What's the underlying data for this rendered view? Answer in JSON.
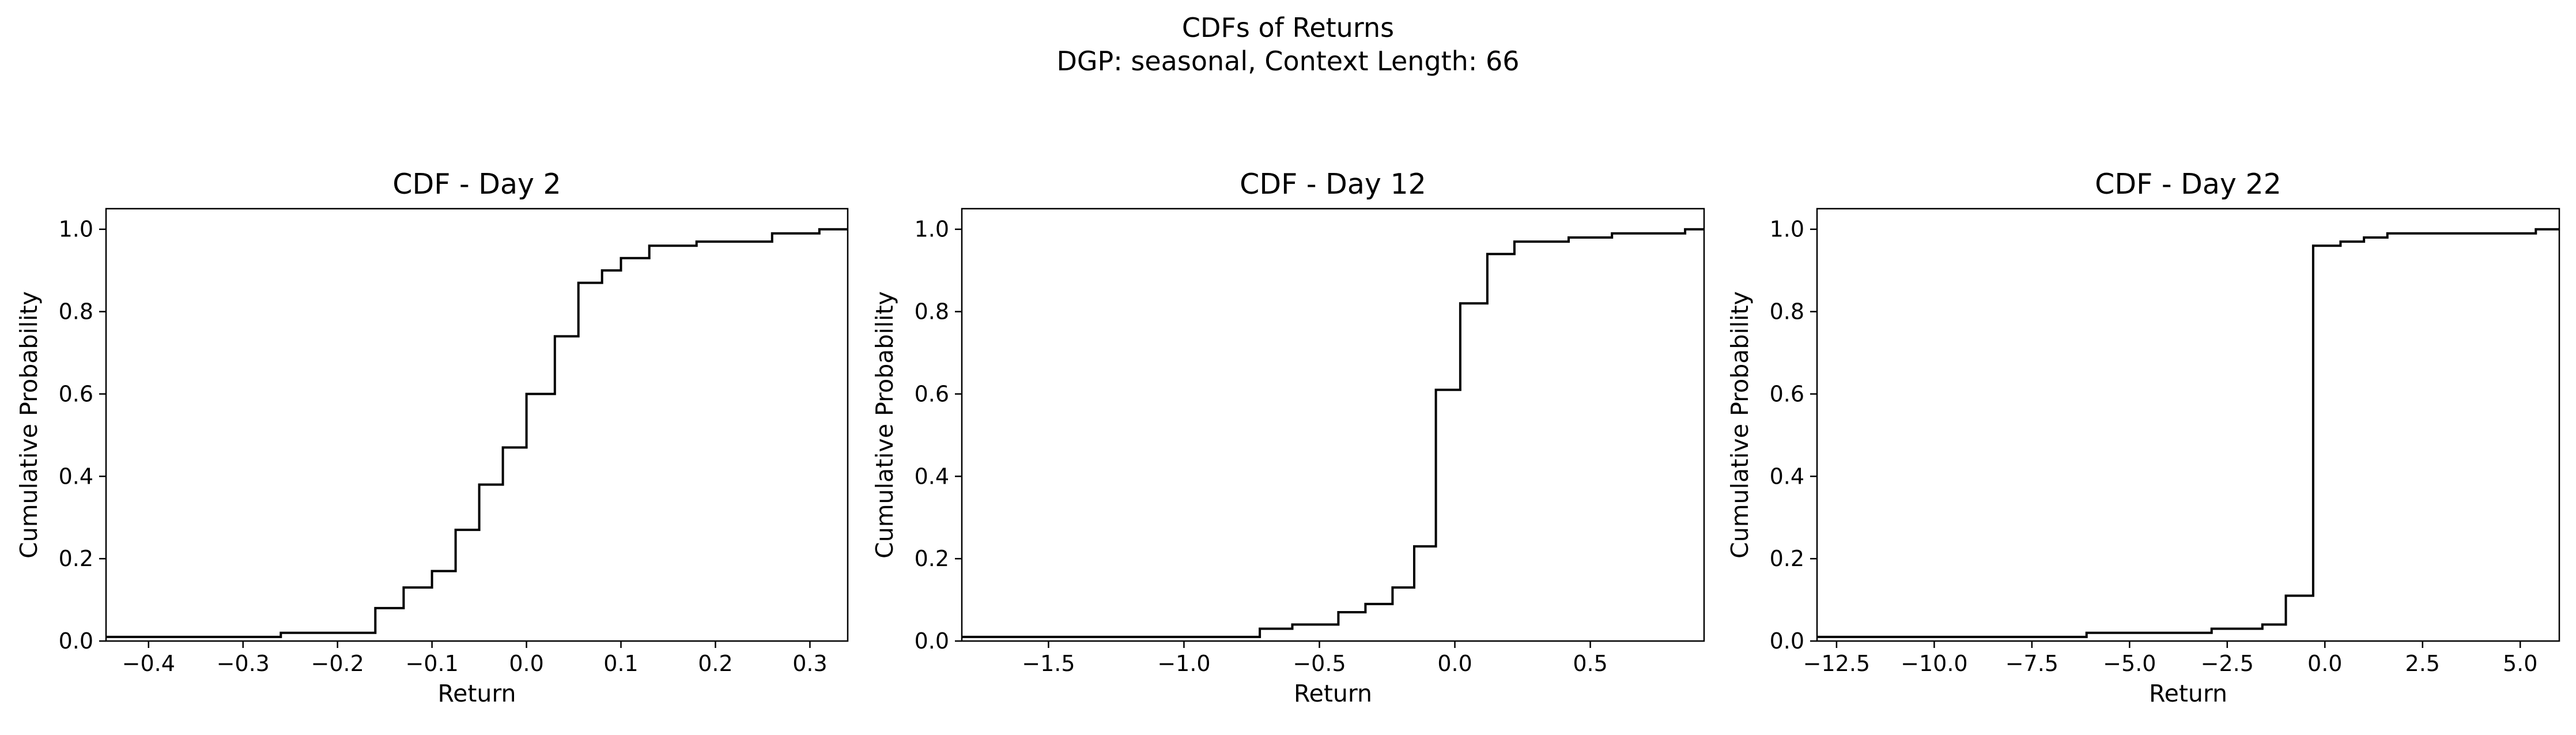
{
  "figure": {
    "title_line1": "CDFs of Returns",
    "title_line2": "DGP: seasonal, Context Length: 66"
  },
  "chart_data": [
    {
      "type": "line",
      "step": true,
      "title": "CDF - Day 2",
      "xlabel": "Return",
      "ylabel": "Cumulative Probability",
      "xlim": [
        -0.445,
        0.34
      ],
      "ylim": [
        0,
        1.05
      ],
      "xticks": [
        -0.4,
        -0.3,
        -0.2,
        -0.1,
        0.0,
        0.1,
        0.2,
        0.3
      ],
      "xtick_labels": [
        "−0.4",
        "−0.3",
        "−0.2",
        "−0.1",
        "0.0",
        "0.1",
        "0.2",
        "0.3"
      ],
      "yticks": [
        0.0,
        0.2,
        0.4,
        0.6,
        0.8,
        1.0
      ],
      "ytick_labels": [
        "0.0",
        "0.2",
        "0.4",
        "0.6",
        "0.8",
        "1.0"
      ],
      "grid": false,
      "series": [
        {
          "color": "#000000",
          "x": [
            -0.445,
            -0.26,
            -0.16,
            -0.13,
            -0.1,
            -0.075,
            -0.05,
            -0.025,
            0.0,
            0.03,
            0.055,
            0.08,
            0.1,
            0.13,
            0.18,
            0.26,
            0.31,
            0.34
          ],
          "y": [
            0.01,
            0.02,
            0.08,
            0.13,
            0.17,
            0.27,
            0.38,
            0.47,
            0.6,
            0.74,
            0.87,
            0.9,
            0.93,
            0.96,
            0.97,
            0.99,
            1.0,
            1.0
          ]
        }
      ]
    },
    {
      "type": "line",
      "step": true,
      "title": "CDF - Day 12",
      "xlabel": "Return",
      "ylabel": "Cumulative Probability",
      "xlim": [
        -1.82,
        0.92
      ],
      "ylim": [
        0,
        1.05
      ],
      "xticks": [
        -1.5,
        -1.0,
        -0.5,
        0.0,
        0.5
      ],
      "xtick_labels": [
        "−1.5",
        "−1.0",
        "−0.5",
        "0.0",
        "0.5"
      ],
      "yticks": [
        0.0,
        0.2,
        0.4,
        0.6,
        0.8,
        1.0
      ],
      "ytick_labels": [
        "0.0",
        "0.2",
        "0.4",
        "0.6",
        "0.8",
        "1.0"
      ],
      "grid": false,
      "series": [
        {
          "color": "#000000",
          "x": [
            -1.82,
            -0.72,
            -0.6,
            -0.43,
            -0.33,
            -0.23,
            -0.15,
            -0.07,
            0.02,
            0.12,
            0.22,
            0.42,
            0.58,
            0.85,
            0.92
          ],
          "y": [
            0.01,
            0.03,
            0.04,
            0.07,
            0.09,
            0.13,
            0.23,
            0.61,
            0.82,
            0.94,
            0.97,
            0.98,
            0.99,
            1.0,
            1.0
          ]
        }
      ]
    },
    {
      "type": "line",
      "step": true,
      "title": "CDF - Day 22",
      "xlabel": "Return",
      "ylabel": "Cumulative Probability",
      "xlim": [
        -13.0,
        6.0
      ],
      "ylim": [
        0,
        1.05
      ],
      "xticks": [
        -12.5,
        -10.0,
        -7.5,
        -5.0,
        -2.5,
        0.0,
        2.5,
        5.0
      ],
      "xtick_labels": [
        "−12.5",
        "−10.0",
        "−7.5",
        "−5.0",
        "−2.5",
        "0.0",
        "2.5",
        "5.0"
      ],
      "yticks": [
        0.0,
        0.2,
        0.4,
        0.6,
        0.8,
        1.0
      ],
      "ytick_labels": [
        "0.0",
        "0.2",
        "0.4",
        "0.6",
        "0.8",
        "1.0"
      ],
      "grid": false,
      "series": [
        {
          "color": "#000000",
          "x": [
            -13.0,
            -6.1,
            -2.9,
            -1.6,
            -1.0,
            -0.3,
            0.4,
            1.0,
            1.6,
            5.4,
            6.0
          ],
          "y": [
            0.01,
            0.02,
            0.03,
            0.04,
            0.11,
            0.96,
            0.97,
            0.98,
            0.99,
            1.0,
            1.0
          ]
        }
      ]
    }
  ]
}
